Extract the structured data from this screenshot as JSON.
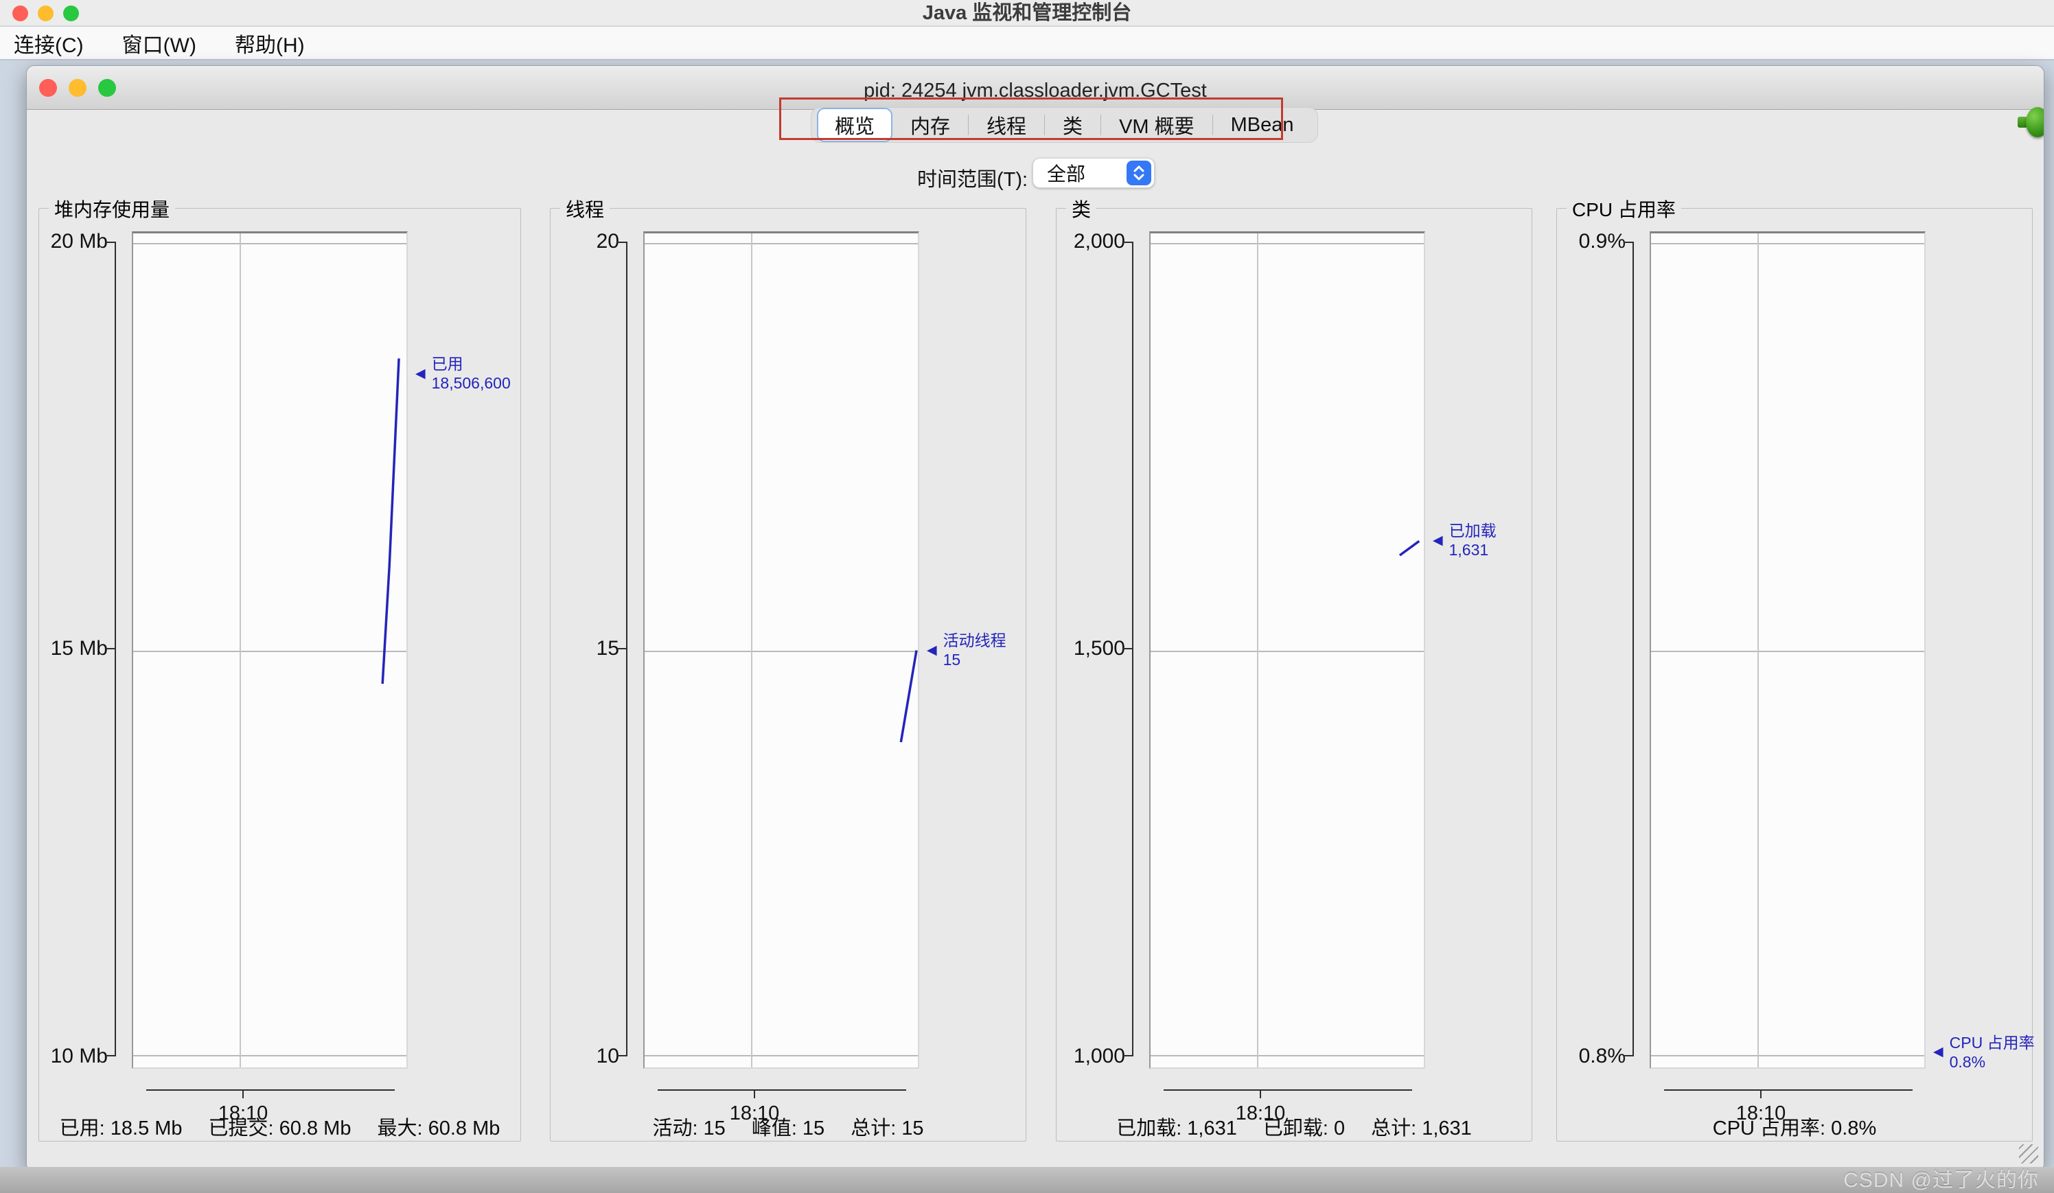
{
  "os_titlebar": {
    "title": "Java 监视和管理控制台"
  },
  "menubar": {
    "items": [
      {
        "label": "连接(C)"
      },
      {
        "label": "窗口(W)"
      },
      {
        "label": "帮助(H)"
      }
    ]
  },
  "window": {
    "title": "pid: 24254 jvm.classloader.jvm.GCTest"
  },
  "tabs": {
    "selected": "概览",
    "items": [
      {
        "label": "概览"
      },
      {
        "label": "内存"
      },
      {
        "label": "线程"
      },
      {
        "label": "类"
      },
      {
        "label": "VM 概要"
      },
      {
        "label": "MBean"
      }
    ]
  },
  "time_range": {
    "label": "时间范围(T):",
    "value": "全部"
  },
  "colors": {
    "chart_line": "#2424bc",
    "annotation_text": "#2424bc",
    "highlight_box_red": "#c23b2e",
    "dropdown_accent": "#3478f6",
    "connected_icon_green": "#3f9c1d",
    "traffic_red": "#ff5f57",
    "traffic_yellow": "#febc2e",
    "traffic_green": "#28c840"
  },
  "watermark": {
    "text": "CSDN @过了火的你"
  },
  "chart_data": [
    {
      "type": "line",
      "title": "堆内存使用量",
      "ylim": [
        10,
        20
      ],
      "yticks": [
        "20 Mb",
        "15 Mb",
        "10 Mb"
      ],
      "xticks": [
        "18:10"
      ],
      "grid": true,
      "series": [
        {
          "name": "已用",
          "color": "#2424bc",
          "points": [
            {
              "x": 0.9125,
              "v": 14.6
            },
            {
              "x": 0.9375,
              "v": 16.0
            },
            {
              "x": 0.9725,
              "v": 18.5
            }
          ]
        }
      ],
      "annotation": {
        "label": "已用",
        "value_text": "18,506,600",
        "level": 18.3
      },
      "status": [
        "已用: 18.5 Mb",
        "已提交: 60.8 Mb",
        "最大: 60.8 Mb"
      ]
    },
    {
      "type": "line",
      "title": "线程",
      "ylim": [
        10,
        20
      ],
      "yticks": [
        "20",
        "15",
        "10"
      ],
      "xticks": [
        "18:10"
      ],
      "grid": true,
      "series": [
        {
          "name": "活动线程",
          "color": "#2424bc",
          "points": [
            {
              "x": 0.938,
              "v": 13.9
            },
            {
              "x": 0.995,
              "v": 15.0
            }
          ]
        }
      ],
      "annotation": {
        "label": "活动线程",
        "value_text": "15",
        "level": 15.0
      },
      "status": [
        "活动: 15",
        "峰值: 15",
        "总计: 15"
      ]
    },
    {
      "type": "line",
      "title": "类",
      "ylim": [
        1000,
        2000
      ],
      "yticks": [
        "2,000",
        "1,500",
        "1,000"
      ],
      "xticks": [
        "18:10"
      ],
      "grid": true,
      "series": [
        {
          "name": "已加载",
          "color": "#2424bc",
          "points": [
            {
              "x": 0.912,
              "v": 1614
            },
            {
              "x": 0.983,
              "v": 1631
            }
          ]
        }
      ],
      "annotation": {
        "label": "已加载",
        "value_text": "1,631",
        "level": 1631
      },
      "status": [
        "已加载: 1,631",
        "已卸载: 0",
        "总计: 1,631"
      ]
    },
    {
      "type": "line",
      "title": "CPU 占用率",
      "ylim": [
        0.8,
        0.9
      ],
      "yticks": [
        "0.9%",
        "",
        "0.8%"
      ],
      "xticks": [
        "18:10"
      ],
      "grid": true,
      "series": [
        {
          "name": "CPU 占用率",
          "color": "#2424bc",
          "points": []
        }
      ],
      "annotation": {
        "label": "CPU 占用率",
        "value_text": "0.8%",
        "level": 0.802
      },
      "status": [
        "CPU 占用率: 0.8%"
      ]
    }
  ]
}
